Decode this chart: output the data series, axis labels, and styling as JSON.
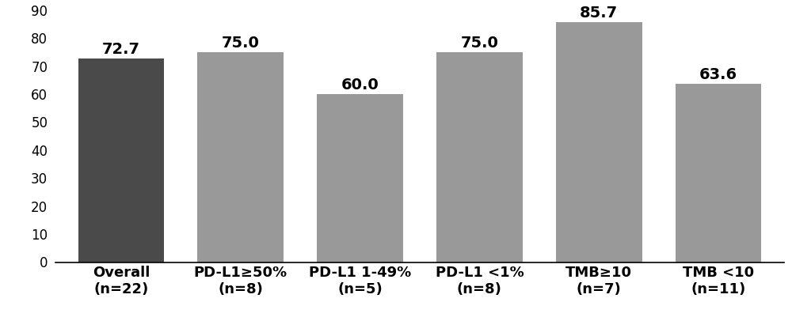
{
  "categories": [
    "Overall\n(n=22)",
    "PD-L1≥50%\n(n=8)",
    "PD-L1 1-49%\n(n=5)",
    "PD-L1 <1%\n(n=8)",
    "TMB≥10\n(n=7)",
    "TMB <10\n(n=11)"
  ],
  "values": [
    72.7,
    75.0,
    60.0,
    75.0,
    85.7,
    63.6
  ],
  "bar_colors": [
    "#4a4a4a",
    "#999999",
    "#999999",
    "#999999",
    "#999999",
    "#999999"
  ],
  "value_labels": [
    "72.7",
    "75.0",
    "60.0",
    "75.0",
    "85.7",
    "63.6"
  ],
  "ylim": [
    0,
    90
  ],
  "yticks": [
    0,
    10,
    20,
    30,
    40,
    50,
    60,
    70,
    80,
    90
  ],
  "background_color": "#ffffff",
  "bar_width": 0.72,
  "tick_fontsize": 12,
  "value_fontsize": 14,
  "xlabel_fontsize": 13
}
